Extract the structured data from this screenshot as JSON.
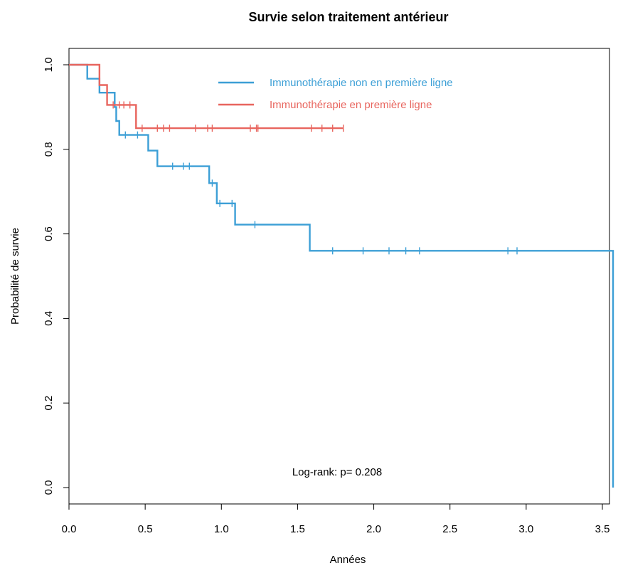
{
  "chart_data": {
    "type": "line",
    "title": "Survie selon traitement antérieur",
    "xlabel": "Années",
    "ylabel": "Probabilité de survie",
    "xlim": [
      0,
      3.6
    ],
    "ylim": [
      0,
      1.0
    ],
    "x_ticks": [
      "0.0",
      "0.5",
      "1.0",
      "1.5",
      "2.0",
      "2.5",
      "3.0",
      "3.5"
    ],
    "y_ticks": [
      "0.0",
      "0.2",
      "0.4",
      "0.6",
      "0.8",
      "1.0"
    ],
    "grid": false,
    "legend_position": "top-center",
    "annotation": "Log-rank: p= 0.208",
    "series": [
      {
        "name": "Immunothérapie non en première ligne",
        "color": "#3C9FD6",
        "steps": [
          [
            0,
            1.0
          ],
          [
            0.12,
            0.967
          ],
          [
            0.2,
            0.934
          ],
          [
            0.3,
            0.9
          ],
          [
            0.31,
            0.867
          ],
          [
            0.33,
            0.834
          ],
          [
            0.52,
            0.797
          ],
          [
            0.58,
            0.76
          ],
          [
            0.92,
            0.72
          ],
          [
            0.97,
            0.672
          ],
          [
            1.09,
            0.622
          ],
          [
            1.58,
            0.56
          ],
          [
            3.57,
            0.0
          ]
        ],
        "censored": [
          [
            0.37,
            0.834
          ],
          [
            0.45,
            0.834
          ],
          [
            0.68,
            0.76
          ],
          [
            0.75,
            0.76
          ],
          [
            0.79,
            0.76
          ],
          [
            0.94,
            0.72
          ],
          [
            0.99,
            0.672
          ],
          [
            1.07,
            0.672
          ],
          [
            1.22,
            0.622
          ],
          [
            1.73,
            0.56
          ],
          [
            1.93,
            0.56
          ],
          [
            2.1,
            0.56
          ],
          [
            2.21,
            0.56
          ],
          [
            2.3,
            0.56
          ],
          [
            2.88,
            0.56
          ],
          [
            2.94,
            0.56
          ]
        ]
      },
      {
        "name": "Immunothérapie en première ligne",
        "color": "#E8655E",
        "steps": [
          [
            0,
            1.0
          ],
          [
            0.2,
            0.952
          ],
          [
            0.25,
            0.905
          ],
          [
            0.44,
            0.85
          ],
          [
            1.8,
            0.85
          ]
        ],
        "censored": [
          [
            0.29,
            0.905
          ],
          [
            0.33,
            0.905
          ],
          [
            0.36,
            0.905
          ],
          [
            0.4,
            0.905
          ],
          [
            0.48,
            0.85
          ],
          [
            0.58,
            0.85
          ],
          [
            0.62,
            0.85
          ],
          [
            0.66,
            0.85
          ],
          [
            0.83,
            0.85
          ],
          [
            0.91,
            0.85
          ],
          [
            0.94,
            0.85
          ],
          [
            1.19,
            0.85
          ],
          [
            1.23,
            0.85
          ],
          [
            1.24,
            0.85
          ],
          [
            1.59,
            0.85
          ],
          [
            1.66,
            0.85
          ],
          [
            1.73,
            0.85
          ],
          [
            1.8,
            0.85
          ]
        ]
      }
    ]
  }
}
